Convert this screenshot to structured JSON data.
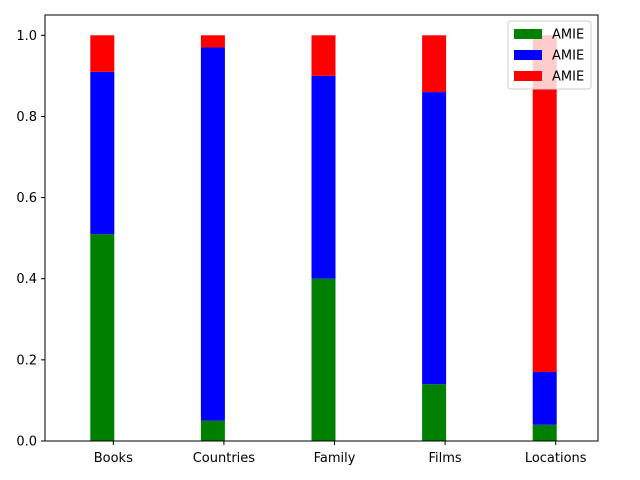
{
  "chart_data": {
    "type": "bar",
    "stacked": true,
    "categories": [
      "Books",
      "Countries",
      "Family",
      "Films",
      "Locations"
    ],
    "series": [
      {
        "name": "AMIE",
        "color": "#008000",
        "values": [
          0.51,
          0.05,
          0.4,
          0.14,
          0.04
        ]
      },
      {
        "name": "AMIE",
        "color": "#0000ff",
        "values": [
          0.4,
          0.92,
          0.5,
          0.72,
          0.13
        ]
      },
      {
        "name": "AMIE",
        "color": "#ff0000",
        "values": [
          0.09,
          0.03,
          0.1,
          0.14,
          0.83
        ]
      }
    ],
    "ylim": [
      0,
      1.05
    ],
    "yticks": [
      "0.0",
      "0.2",
      "0.4",
      "0.6",
      "0.8",
      "1.0"
    ],
    "ytick_values": [
      0,
      0.2,
      0.4,
      0.6,
      0.8,
      1.0
    ],
    "grid": false,
    "legend": "top-right"
  }
}
